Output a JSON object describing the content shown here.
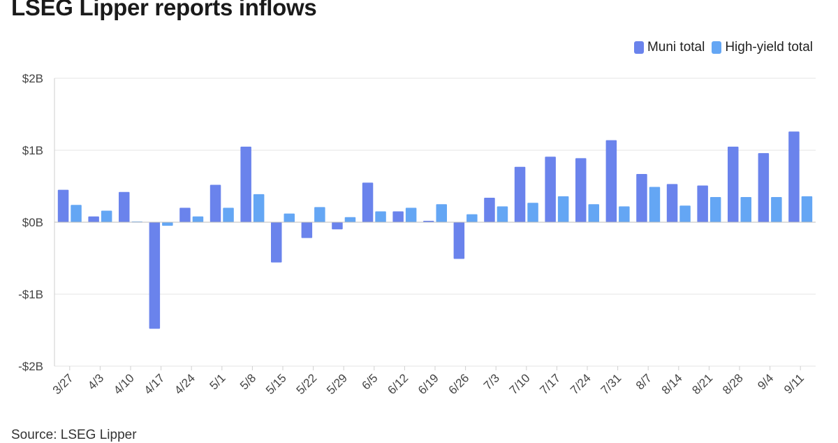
{
  "title": "LSEG Lipper reports inflows",
  "source": "Source: LSEG Lipper",
  "legend": [
    {
      "name": "Muni total",
      "color": "#6a83ec"
    },
    {
      "name": "High-yield total",
      "color": "#64a6f4"
    }
  ],
  "chart_data": {
    "type": "bar",
    "title": "LSEG Lipper reports inflows",
    "xlabel": "",
    "ylabel": "",
    "ylim": [
      -2,
      2
    ],
    "y_unit": "$B",
    "y_ticks": [
      {
        "value": 2,
        "label": "$2B"
      },
      {
        "value": 1,
        "label": "$1B"
      },
      {
        "value": 0,
        "label": "$0B"
      },
      {
        "value": -1,
        "label": "-$1B"
      },
      {
        "value": -2,
        "label": "-$2B"
      }
    ],
    "grid": true,
    "legend_position": "top-right",
    "categories": [
      "3/27",
      "4/3",
      "4/10",
      "4/17",
      "4/24",
      "5/1",
      "5/8",
      "5/15",
      "5/22",
      "5/29",
      "6/5",
      "6/12",
      "6/19",
      "6/26",
      "7/3",
      "7/10",
      "7/17",
      "7/24",
      "7/31",
      "8/7",
      "8/14",
      "8/21",
      "8/28",
      "9/4",
      "9/11"
    ],
    "series": [
      {
        "name": "Muni total",
        "color": "#6a83ec",
        "values": [
          0.45,
          0.08,
          0.42,
          -1.48,
          0.2,
          0.52,
          1.05,
          -0.56,
          -0.22,
          -0.1,
          0.55,
          0.15,
          0.02,
          -0.51,
          0.34,
          0.77,
          0.91,
          0.89,
          1.14,
          0.67,
          0.53,
          0.51,
          1.05,
          0.96,
          1.26
        ]
      },
      {
        "name": "High-yield total",
        "color": "#64a6f4",
        "values": [
          0.24,
          0.16,
          0.01,
          -0.05,
          0.08,
          0.2,
          0.39,
          0.12,
          0.21,
          0.07,
          0.15,
          0.2,
          0.25,
          0.11,
          0.22,
          0.27,
          0.36,
          0.25,
          0.22,
          0.49,
          0.23,
          0.35,
          0.35,
          0.35,
          0.36
        ]
      }
    ]
  }
}
